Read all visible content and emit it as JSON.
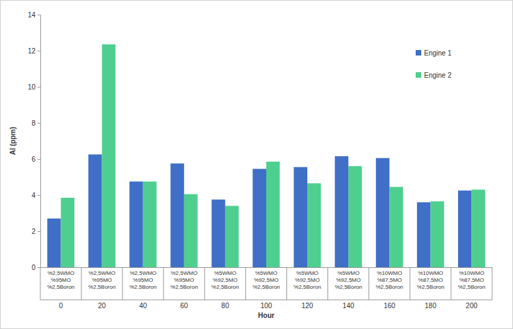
{
  "chart_data": {
    "type": "bar",
    "x_label": "Hour",
    "y_label": "Al (ppm)",
    "categories": [
      "0",
      "20",
      "40",
      "60",
      "80",
      "100",
      "120",
      "140",
      "160",
      "180",
      "200"
    ],
    "category_labels": [
      [
        "%2,5WMO",
        "%95MO",
        "%2,5Boron"
      ],
      [
        "%2,5WMO",
        "%95MO",
        "%2,5Boron"
      ],
      [
        "%2,5WMO",
        "%95MO",
        "%2,5Boron"
      ],
      [
        "%2,5WMO",
        "%95MO",
        "%2,5Boron"
      ],
      [
        "%5WMO",
        "%92,5MO",
        "%2,5Boron"
      ],
      [
        "%5WMO",
        "%92,5MO",
        "%2,5Boron"
      ],
      [
        "%5WMO",
        "%92,5MO",
        "%2,5Boron"
      ],
      [
        "%5WMO",
        "%92,5MO",
        "%2,5Boron"
      ],
      [
        "%10WMO",
        "%87,5MO",
        "%2,5Boron"
      ],
      [
        "%10WMO",
        "%87,5MO",
        "%2,5Boron"
      ],
      [
        "%10WMO",
        "%87,5MO",
        "%2,5Boron"
      ]
    ],
    "series": [
      {
        "name": "Engine 1",
        "color": "#3f6fc6",
        "values": [
          2.7,
          6.25,
          4.75,
          5.75,
          3.75,
          5.45,
          5.55,
          6.15,
          6.05,
          3.6,
          4.25
        ]
      },
      {
        "name": "Engine 2",
        "color": "#4fcf8f",
        "values": [
          3.85,
          12.35,
          4.75,
          4.05,
          3.4,
          5.85,
          4.65,
          5.6,
          4.45,
          3.65,
          4.3
        ]
      }
    ],
    "ylim": [
      0,
      14
    ],
    "yticks": [
      0,
      2,
      4,
      6,
      8,
      10,
      12,
      14
    ],
    "grid": false,
    "legend": "top-right"
  }
}
